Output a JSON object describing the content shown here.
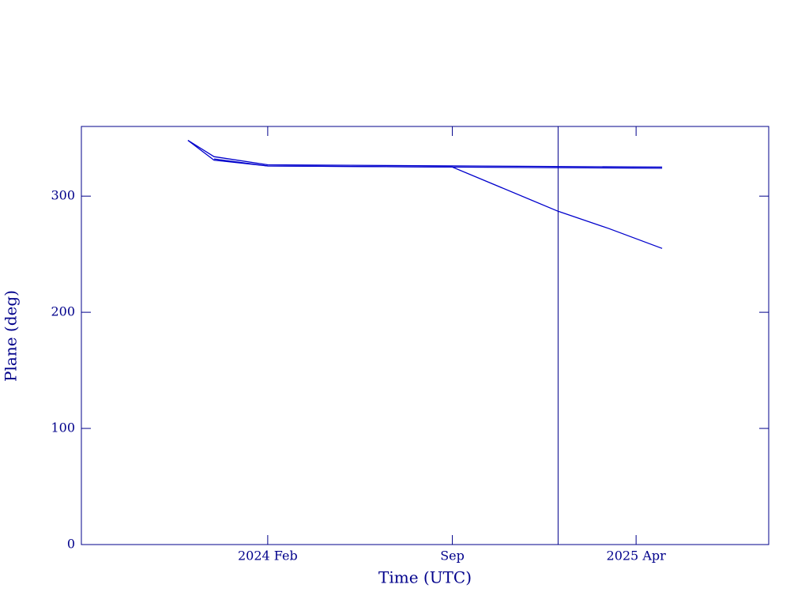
{
  "chart_data": {
    "type": "line",
    "xlabel": "Time (UTC)",
    "ylabel": "Plane (deg)",
    "color": "#0000cc",
    "xlim": [
      "2023-07",
      "2025-09"
    ],
    "xticks": [
      {
        "value": "2024-02",
        "label": "2024 Feb"
      },
      {
        "value": "2024-09",
        "label": "Sep"
      },
      {
        "value": "2025-04",
        "label": "2025 Apr"
      }
    ],
    "ylim": [
      0,
      360
    ],
    "yticks": [
      0,
      100,
      200,
      300
    ],
    "vline": "2025-01",
    "series": [
      {
        "color": "#0000cc",
        "x": [
          "2023-11",
          "2023-12",
          "2024-02",
          "2024-09",
          "2025-01",
          "2025-03",
          "2025-05"
        ],
        "values": [
          348,
          331,
          326,
          325,
          287,
          272,
          255
        ]
      },
      {
        "color": "#0000cc",
        "x": [
          "2023-11",
          "2023-12",
          "2024-02",
          "2025-05"
        ],
        "values": [
          348,
          334,
          327,
          325
        ]
      },
      {
        "color": "#0000cc",
        "x": [
          "2023-12",
          "2024-02",
          "2025-05"
        ],
        "values": [
          332,
          326,
          324
        ]
      }
    ]
  }
}
